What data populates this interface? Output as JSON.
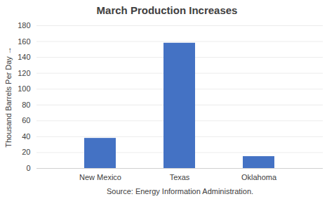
{
  "chart_data": {
    "type": "bar",
    "title": "March Production Increases",
    "categories": [
      "New Mexico",
      "Texas",
      "Oklahoma"
    ],
    "values": [
      38,
      158,
      15
    ],
    "color": "#4472C4",
    "ylabel": "Thousand Barrels Per Day",
    "xlabel": "Source: Energy Information Administration.",
    "ylim": [
      0,
      180
    ],
    "yticks": [
      0,
      20,
      40,
      60,
      80,
      100,
      120,
      140,
      160,
      180
    ],
    "grid": true
  }
}
